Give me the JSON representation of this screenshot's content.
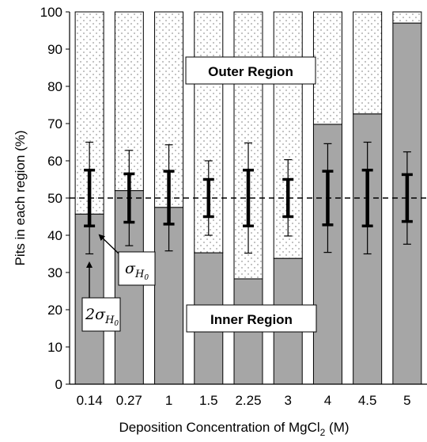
{
  "chart_data": {
    "type": "bar",
    "stacked": true,
    "categories": [
      "0.14",
      "0.27",
      "1",
      "1.5",
      "2.25",
      "3",
      "4",
      "4.5",
      "5"
    ],
    "series": [
      {
        "values": [
          45.7,
          52.0,
          47.5,
          35.3,
          28.3,
          33.8,
          69.8,
          72.6,
          97.0
        ],
        "color": "#a6a6a6"
      },
      {
        "values": [
          54.3,
          48.0,
          52.5,
          64.7,
          71.7,
          66.2,
          30.2,
          27.4,
          3.0
        ],
        "color": "#ffffff",
        "pattern": "dots"
      }
    ],
    "error_bars": [
      {
        "category": "0.14",
        "center": 50,
        "sigma_range": [
          42.5,
          57.5
        ],
        "two_sigma_range": [
          35.0,
          65.0
        ]
      },
      {
        "category": "0.27",
        "center": 50,
        "sigma_range": [
          43.5,
          56.5
        ],
        "two_sigma_range": [
          37.2,
          62.8
        ]
      },
      {
        "category": "1",
        "center": 50,
        "sigma_range": [
          43.0,
          57.2
        ],
        "two_sigma_range": [
          35.8,
          64.3
        ]
      },
      {
        "category": "1.5",
        "center": 50,
        "sigma_range": [
          45.0,
          55.0
        ],
        "two_sigma_range": [
          40.0,
          60.0
        ]
      },
      {
        "category": "2.25",
        "center": 50,
        "sigma_range": [
          42.5,
          57.5
        ],
        "two_sigma_range": [
          35.2,
          64.8
        ]
      },
      {
        "category": "3",
        "center": 50,
        "sigma_range": [
          45.0,
          55.0
        ],
        "two_sigma_range": [
          39.8,
          60.3
        ]
      },
      {
        "category": "4",
        "center": 50,
        "sigma_range": [
          42.8,
          57.2
        ],
        "two_sigma_range": [
          35.4,
          64.6
        ]
      },
      {
        "category": "4.5",
        "center": 50,
        "sigma_range": [
          42.5,
          57.5
        ],
        "two_sigma_range": [
          35.0,
          65.0
        ]
      },
      {
        "category": "5",
        "center": 50,
        "sigma_range": [
          43.7,
          56.3
        ],
        "two_sigma_range": [
          37.6,
          62.4
        ]
      }
    ],
    "reference_line": {
      "y": 50,
      "style": "dashed"
    },
    "annotations": {
      "outer_region": "Outer Region",
      "inner_region": "Inner Region",
      "sigma_symbol": "σ",
      "sigma_subscript": "H",
      "sigma_sub_subscript": "0",
      "two_sigma_prefix": "2"
    },
    "xlabel_main": "Deposition Concentration of MgCl",
    "xlabel_sub": "2",
    "xlabel_tail": " (M)",
    "ylabel": "Pits in each region (%)",
    "ylim": [
      0,
      100
    ],
    "yticks": [
      "0",
      "10",
      "20",
      "30",
      "40",
      "50",
      "60",
      "70",
      "80",
      "90",
      "100"
    ],
    "grid": false,
    "legend": "none"
  }
}
